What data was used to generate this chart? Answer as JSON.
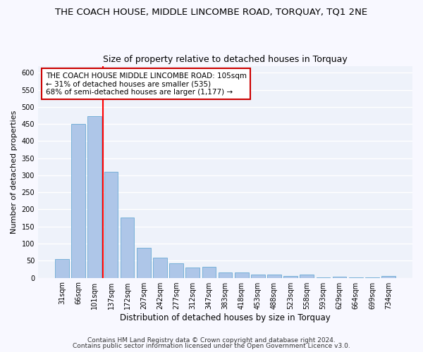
{
  "title": "THE COACH HOUSE, MIDDLE LINCOMBE ROAD, TORQUAY, TQ1 2NE",
  "subtitle": "Size of property relative to detached houses in Torquay",
  "xlabel": "Distribution of detached houses by size in Torquay",
  "ylabel": "Number of detached properties",
  "categories": [
    "31sqm",
    "66sqm",
    "101sqm",
    "137sqm",
    "172sqm",
    "207sqm",
    "242sqm",
    "277sqm",
    "312sqm",
    "347sqm",
    "383sqm",
    "418sqm",
    "453sqm",
    "488sqm",
    "523sqm",
    "558sqm",
    "593sqm",
    "629sqm",
    "664sqm",
    "699sqm",
    "734sqm"
  ],
  "values": [
    54,
    450,
    472,
    311,
    176,
    88,
    58,
    43,
    30,
    32,
    15,
    15,
    10,
    10,
    6,
    10,
    1,
    4,
    1,
    1,
    5
  ],
  "bar_color": "#aec6e8",
  "bar_edge_color": "#6aaad4",
  "background_color": "#eef2fa",
  "grid_color": "#ffffff",
  "red_line_index": 2,
  "annotation_text": "THE COACH HOUSE MIDDLE LINCOMBE ROAD: 105sqm\n← 31% of detached houses are smaller (535)\n68% of semi-detached houses are larger (1,177) →",
  "annotation_box_color": "#ffffff",
  "annotation_box_edge": "#cc0000",
  "ylim": [
    0,
    620
  ],
  "yticks": [
    0,
    50,
    100,
    150,
    200,
    250,
    300,
    350,
    400,
    450,
    500,
    550,
    600
  ],
  "footer1": "Contains HM Land Registry data © Crown copyright and database right 2024.",
  "footer2": "Contains public sector information licensed under the Open Government Licence v3.0.",
  "title_fontsize": 9.5,
  "subtitle_fontsize": 9,
  "xlabel_fontsize": 8.5,
  "ylabel_fontsize": 8,
  "tick_fontsize": 7,
  "annotation_fontsize": 7.5,
  "footer_fontsize": 6.5,
  "fig_facecolor": "#f8f8ff"
}
